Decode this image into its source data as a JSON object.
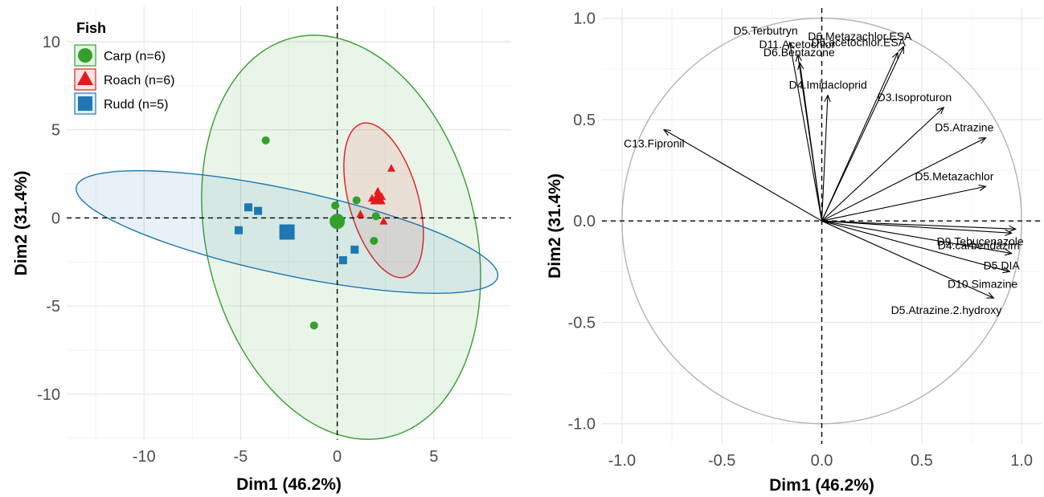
{
  "chart_data": [
    {
      "type": "scatter",
      "title": "",
      "xlabel": "Dim1 (46.2%)",
      "ylabel": "Dim2 (31.4%)",
      "xlim": [
        -14,
        9
      ],
      "ylim": [
        -12.6,
        12
      ],
      "x_ticks": [
        -10,
        -5,
        0,
        5
      ],
      "y_ticks": [
        -10,
        -5,
        0,
        5,
        10
      ],
      "grid": true,
      "legend": {
        "title": "Fish",
        "placement": "top-left"
      },
      "series": [
        {
          "name": "Carp (n=6)",
          "color": "#33a02c",
          "shape": "circle",
          "points": [
            [
              -3.7,
              4.4
            ],
            [
              -0.1,
              0.7
            ],
            [
              1.0,
              1.0
            ],
            [
              2.0,
              0.1
            ],
            [
              1.9,
              -1.3
            ],
            [
              -1.2,
              -6.1
            ]
          ],
          "centroid": [
            0.0,
            -0.2
          ],
          "ellipse": {
            "cx": 0.2,
            "cy": -1.1,
            "rx": 7.0,
            "ry": 11.6,
            "angle_deg": 11
          }
        },
        {
          "name": "Roach (n=6)",
          "color": "#e31a1c",
          "shape": "triangle",
          "points": [
            [
              2.8,
              2.8
            ],
            [
              2.1,
              1.5
            ],
            [
              2.3,
              1.2
            ],
            [
              1.8,
              1.1
            ],
            [
              1.2,
              0.2
            ],
            [
              2.4,
              -0.2
            ]
          ],
          "centroid": [
            2.1,
            1.1
          ],
          "ellipse": {
            "cx": 2.4,
            "cy": 1.0,
            "rx": 1.8,
            "ry": 4.5,
            "angle_deg": 14
          }
        },
        {
          "name": "Rudd (n=5)",
          "color": "#1f78b4",
          "shape": "square",
          "points": [
            [
              -4.6,
              0.6
            ],
            [
              -4.1,
              0.4
            ],
            [
              -5.1,
              -0.7
            ],
            [
              0.3,
              -2.4
            ],
            [
              0.9,
              -1.8
            ]
          ],
          "centroid": [
            -2.6,
            -0.8
          ],
          "ellipse": {
            "cx": -2.6,
            "cy": -0.8,
            "rx": 11.2,
            "ry": 2.4,
            "angle_deg": -13.3
          }
        }
      ]
    },
    {
      "type": "scatter",
      "title": "",
      "xlabel": "Dim1 (46.2%)",
      "ylabel": "Dim2 (31.4%)",
      "xlim": [
        -1.1,
        1.1
      ],
      "ylim": [
        -1.1,
        1.05
      ],
      "x_ticks": [
        -1.0,
        -0.5,
        0.0,
        0.5,
        1.0
      ],
      "y_ticks": [
        -1.0,
        -0.5,
        0.0,
        0.5,
        1.0
      ],
      "x_tick_labels": [
        "-1.0",
        "-0.5",
        "0.0",
        "0.5",
        "1.0"
      ],
      "y_tick_labels": [
        "-1.0",
        "-0.5",
        "0.0",
        "0.5",
        "1.0"
      ],
      "grid": true,
      "unit_circle": true,
      "variables": [
        {
          "name": "D5.Terbutryn",
          "x": -0.16,
          "y": 0.88
        },
        {
          "name": "D11.Acetochlor",
          "x": -0.12,
          "y": 0.82
        },
        {
          "name": "D6.Bentazone",
          "x": -0.11,
          "y": 0.78
        },
        {
          "name": "D4.Imidacloprid",
          "x": 0.03,
          "y": 0.62
        },
        {
          "name": "D6.Metazachlor.ESA",
          "x": 0.41,
          "y": 0.86
        },
        {
          "name": "D5.acetochlor.ESA",
          "x": 0.38,
          "y": 0.83
        },
        {
          "name": "D3.Isoproturon",
          "x": 0.61,
          "y": 0.56
        },
        {
          "name": "D5.Atrazine",
          "x": 0.82,
          "y": 0.41
        },
        {
          "name": "C13.Fipronil",
          "x": -0.79,
          "y": 0.45
        },
        {
          "name": "D5.Metazachlor",
          "x": 0.82,
          "y": 0.17
        },
        {
          "name": "D9.Tebucenazole",
          "x": 0.97,
          "y": -0.04
        },
        {
          "name": "D4.carbendazim",
          "x": 0.95,
          "y": -0.06
        },
        {
          "name": "D5.DIA",
          "x": 0.95,
          "y": -0.16
        },
        {
          "name": "D10.Simazine",
          "x": 0.94,
          "y": -0.25
        },
        {
          "name": "D5.Atrazine.2.hydroxy",
          "x": 0.86,
          "y": -0.38
        }
      ]
    }
  ]
}
